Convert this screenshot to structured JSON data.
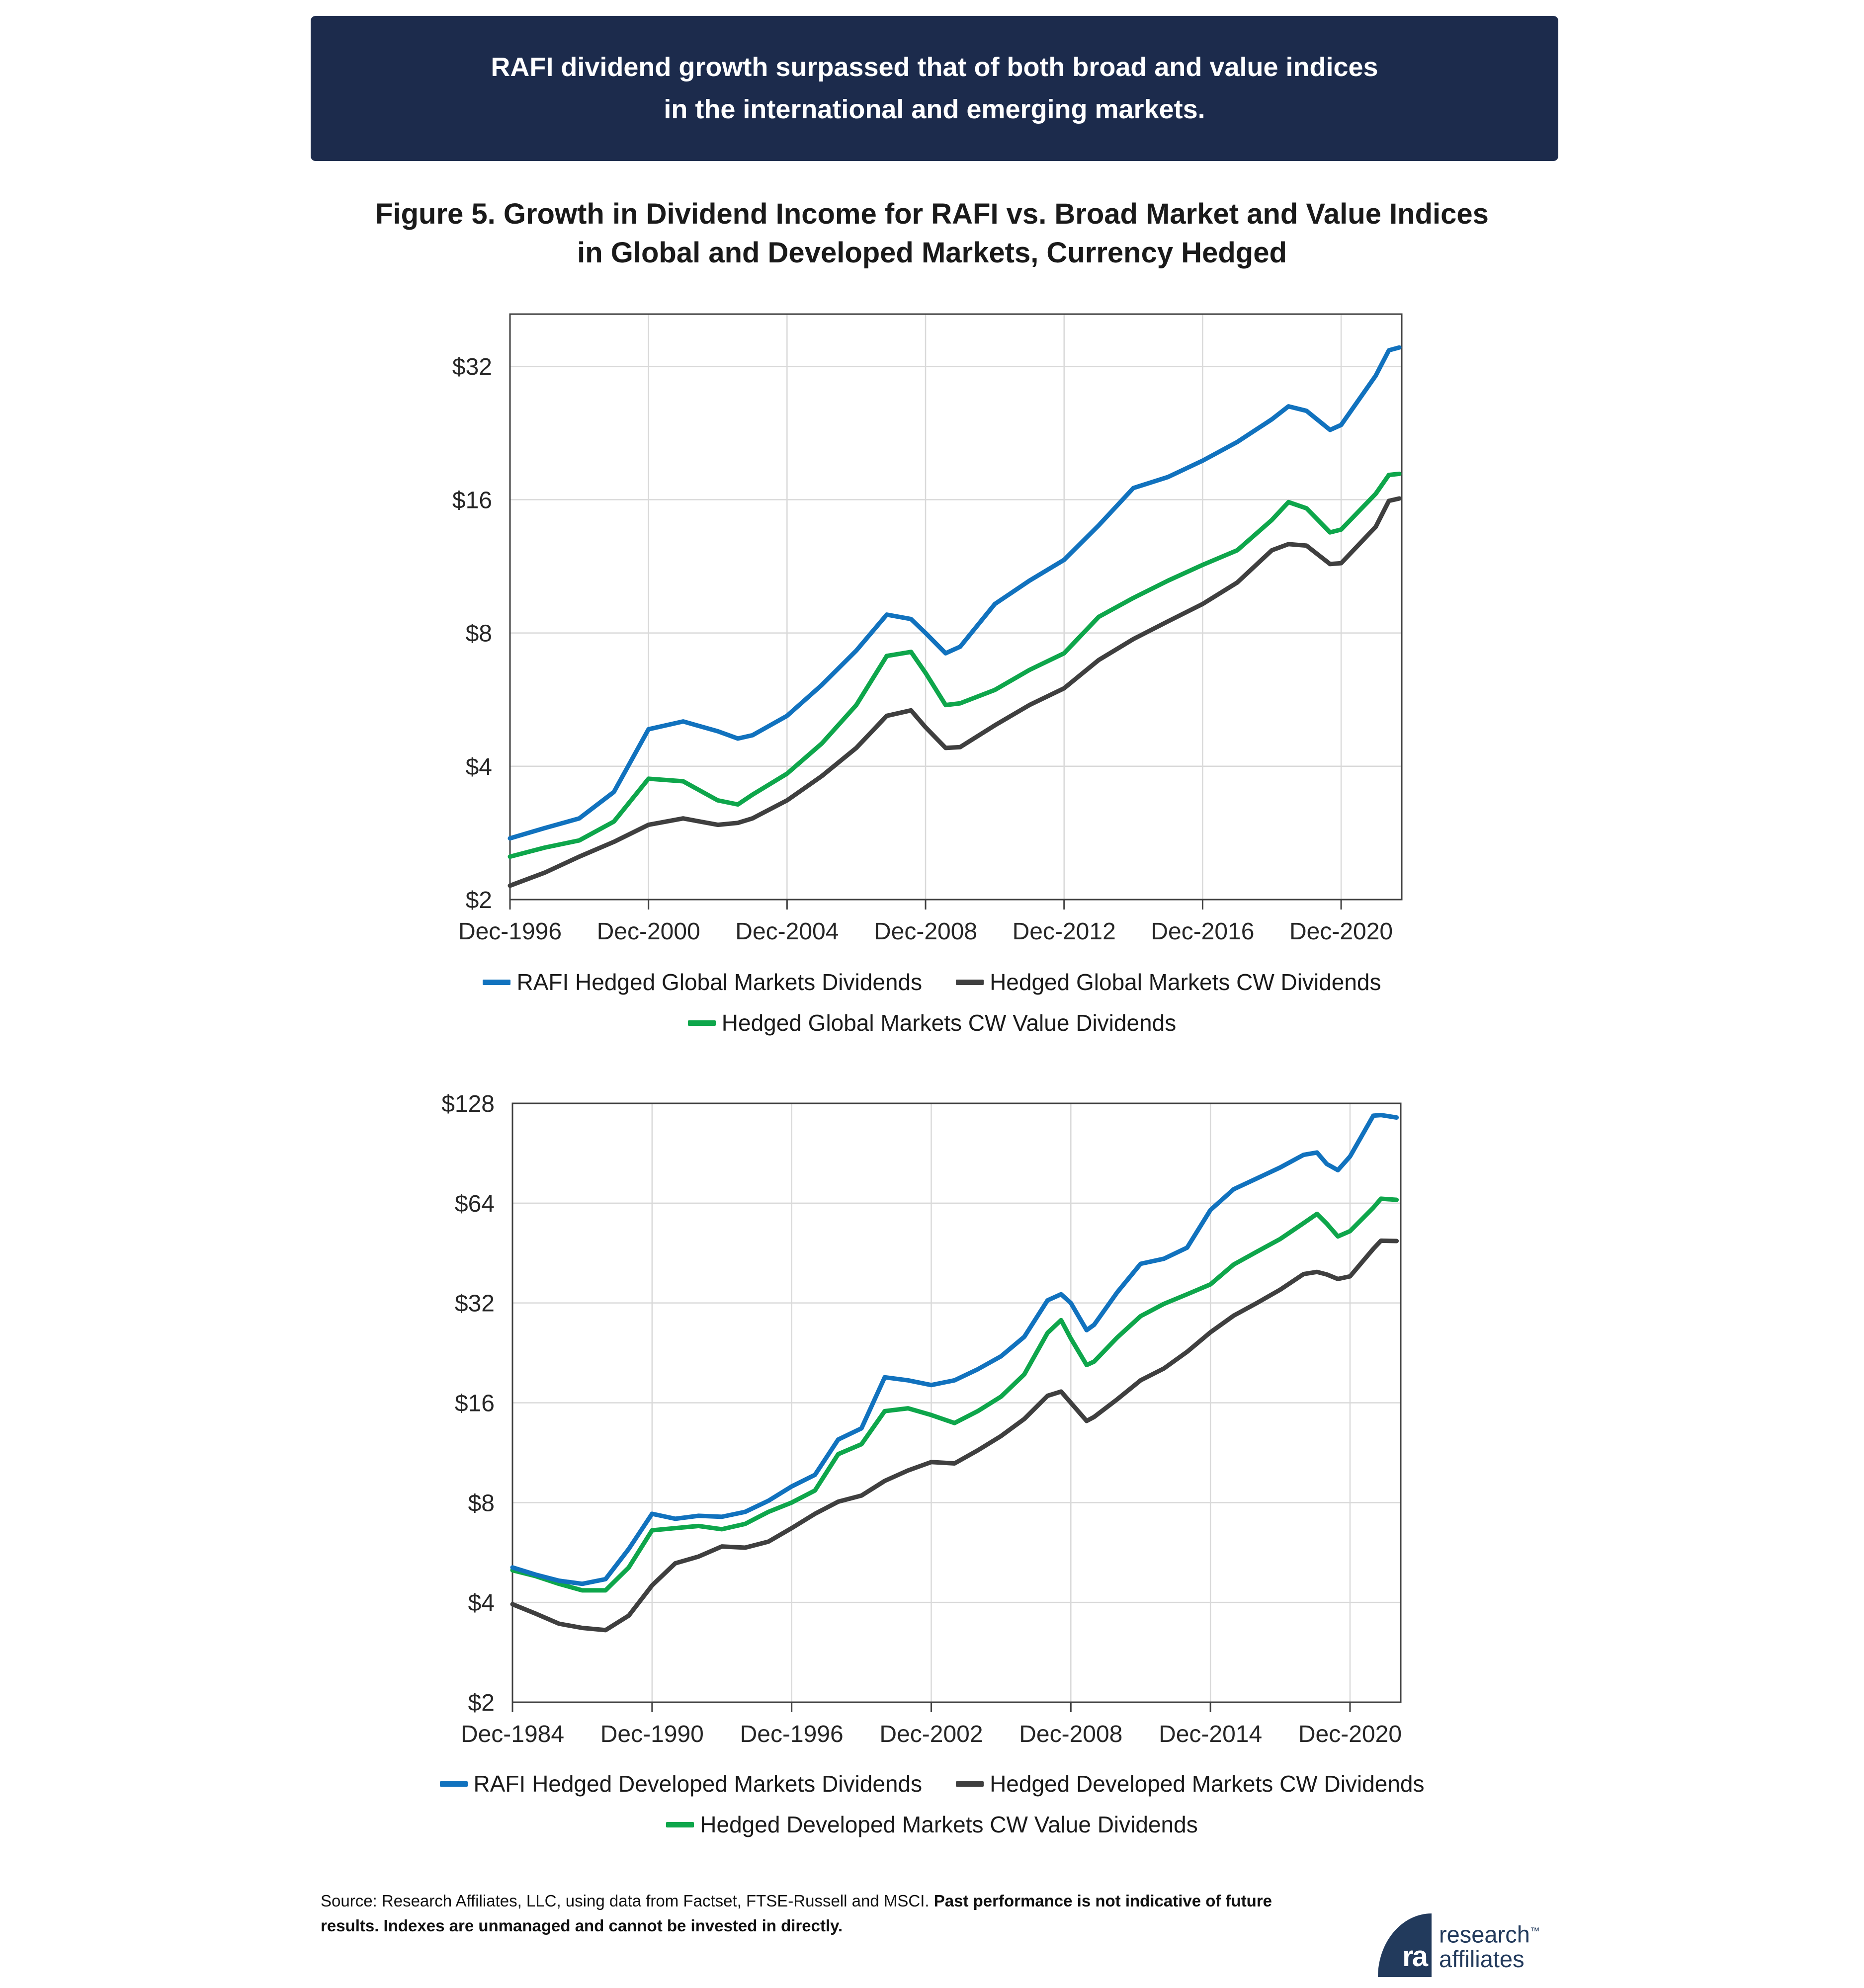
{
  "banner": {
    "line1": "RAFI dividend growth surpassed that of both broad and value indices",
    "line2": "in the international and emerging markets.",
    "bg_color": "#1C2B4C",
    "text_color": "#FFFFFF"
  },
  "figure_title": {
    "line1": "Figure 5. Growth in Dividend Income for RAFI vs. Broad Market and Value Indices",
    "line2": "in Global and Developed Markets, Currency Hedged"
  },
  "colors": {
    "rafi_blue": "#1172BE",
    "cw_gray": "#3F3F3F",
    "cw_value_green": "#0EA64B",
    "grid": "#D9D9D9",
    "axis": "#404040",
    "text": "#262626"
  },
  "chart_data": [
    {
      "id": "global-markets",
      "type": "line",
      "y_scale": "log2",
      "grid": true,
      "y_range": [
        2,
        42
      ],
      "y_tick_values": [
        2,
        4,
        8,
        16,
        32
      ],
      "y_tick_labels": [
        "$2",
        "$4",
        "$8",
        "$16",
        "$32"
      ],
      "x_range": [
        1996.92,
        2022.67
      ],
      "x_tick_values": [
        1996.92,
        2000.92,
        2004.92,
        2008.92,
        2012.92,
        2016.92,
        2020.92
      ],
      "x_tick_labels": [
        "Dec-1996",
        "Dec-2000",
        "Dec-2004",
        "Dec-2008",
        "Dec-2012",
        "Dec-2016",
        "Dec-2020"
      ],
      "series": [
        {
          "name": "Hedged Global Markets CW Dividends",
          "color": "#3F3F3F",
          "x": [
            1996.92,
            1997.92,
            1998.92,
            1999.92,
            2000.92,
            2001.92,
            2002.92,
            2003.5,
            2003.92,
            2004.92,
            2005.92,
            2006.92,
            2007.8,
            2008.5,
            2008.92,
            2009.5,
            2009.92,
            2010.92,
            2011.92,
            2012.92,
            2013.92,
            2014.92,
            2015.92,
            2016.92,
            2017.92,
            2018.92,
            2019.4,
            2019.92,
            2020.6,
            2020.92,
            2021.92,
            2022.3,
            2022.6
          ],
          "values": [
            2.15,
            2.3,
            2.5,
            2.7,
            2.95,
            3.05,
            2.95,
            2.98,
            3.05,
            3.35,
            3.8,
            4.4,
            5.2,
            5.35,
            4.9,
            4.4,
            4.42,
            4.95,
            5.5,
            6.0,
            6.95,
            7.75,
            8.5,
            9.3,
            10.4,
            12.3,
            12.7,
            12.6,
            11.45,
            11.5,
            13.9,
            15.9,
            16.1
          ]
        },
        {
          "name": "Hedged Global Markets CW Value Dividends",
          "color": "#0EA64B",
          "x": [
            1996.92,
            1997.92,
            1998.92,
            1999.92,
            2000.92,
            2001.92,
            2002.92,
            2003.5,
            2003.92,
            2004.92,
            2005.92,
            2006.92,
            2007.8,
            2008.5,
            2008.92,
            2009.5,
            2009.92,
            2010.92,
            2011.92,
            2012.92,
            2013.92,
            2014.92,
            2015.92,
            2016.92,
            2017.92,
            2018.92,
            2019.4,
            2019.92,
            2020.6,
            2020.92,
            2021.92,
            2022.3,
            2022.6
          ],
          "values": [
            2.5,
            2.62,
            2.72,
            3.0,
            3.75,
            3.7,
            3.35,
            3.28,
            3.45,
            3.85,
            4.5,
            5.5,
            7.1,
            7.25,
            6.5,
            5.5,
            5.55,
            5.95,
            6.6,
            7.2,
            8.7,
            9.6,
            10.5,
            11.4,
            12.3,
            14.4,
            15.8,
            15.3,
            13.5,
            13.7,
            16.5,
            18.2,
            18.3
          ]
        },
        {
          "name": "RAFI Hedged Global Markets Dividends",
          "color": "#1172BE",
          "x": [
            1996.92,
            1997.92,
            1998.92,
            1999.92,
            2000.92,
            2001.92,
            2002.92,
            2003.5,
            2003.92,
            2004.92,
            2005.92,
            2006.92,
            2007.8,
            2008.5,
            2008.92,
            2009.5,
            2009.92,
            2010.92,
            2011.92,
            2012.92,
            2013.92,
            2014.92,
            2015.92,
            2016.92,
            2017.92,
            2018.92,
            2019.4,
            2019.92,
            2020.6,
            2020.92,
            2021.92,
            2022.3,
            2022.6
          ],
          "values": [
            2.75,
            2.9,
            3.05,
            3.5,
            4.85,
            5.05,
            4.8,
            4.62,
            4.7,
            5.2,
            6.1,
            7.3,
            8.8,
            8.6,
            8.0,
            7.2,
            7.45,
            9.3,
            10.5,
            11.7,
            14.0,
            17.0,
            18.0,
            19.6,
            21.6,
            24.3,
            26.0,
            25.4,
            23.0,
            23.6,
            30.5,
            34.8,
            35.3
          ]
        }
      ],
      "legend_rows": [
        [
          "RAFI Hedged Global Markets Dividends",
          "Hedged Global Markets CW Dividends"
        ],
        [
          "Hedged Global Markets CW Value Dividends"
        ]
      ]
    },
    {
      "id": "developed-markets",
      "type": "line",
      "y_scale": "log2",
      "grid": true,
      "y_range": [
        2,
        128
      ],
      "y_tick_values": [
        2,
        4,
        8,
        16,
        32,
        64,
        128
      ],
      "y_tick_labels": [
        "$2",
        "$4",
        "$8",
        "$16",
        "$32",
        "$64",
        "$128"
      ],
      "x_range": [
        1984.92,
        2023.1
      ],
      "x_tick_values": [
        1984.92,
        1990.92,
        1996.92,
        2002.92,
        2008.92,
        2014.92,
        2020.92
      ],
      "x_tick_labels": [
        "Dec-1984",
        "Dec-1990",
        "Dec-1996",
        "Dec-2002",
        "Dec-2008",
        "Dec-2014",
        "Dec-2020"
      ],
      "series": [
        {
          "name": "Hedged Developed Markets CW Dividends",
          "color": "#3F3F3F",
          "x": [
            1984.92,
            1985.92,
            1986.92,
            1987.92,
            1988.92,
            1989.92,
            1990.92,
            1991.92,
            1992.92,
            1993.92,
            1994.92,
            1995.92,
            1996.92,
            1997.92,
            1998.92,
            1999.92,
            2000.92,
            2001.92,
            2002.92,
            2003.92,
            2004.92,
            2005.92,
            2006.92,
            2007.92,
            2008.5,
            2008.92,
            2009.6,
            2009.92,
            2010.92,
            2011.92,
            2012.92,
            2013.92,
            2014.92,
            2015.92,
            2016.92,
            2017.92,
            2018.92,
            2019.5,
            2019.92,
            2020.4,
            2020.92,
            2021.92,
            2022.25,
            2022.92
          ],
          "values": [
            3.95,
            3.7,
            3.45,
            3.35,
            3.3,
            3.65,
            4.5,
            5.25,
            5.5,
            5.9,
            5.85,
            6.1,
            6.7,
            7.4,
            8.05,
            8.4,
            9.3,
            10.0,
            10.6,
            10.5,
            11.5,
            12.7,
            14.3,
            16.8,
            17.3,
            16.0,
            14.1,
            14.5,
            16.4,
            18.7,
            20.3,
            22.8,
            26.1,
            29.3,
            32.0,
            35.1,
            39.1,
            39.7,
            39.0,
            37.8,
            38.5,
            46.6,
            49.3,
            49.2
          ]
        },
        {
          "name": "Hedged Developed Markets CW Value Dividends",
          "color": "#0EA64B",
          "x": [
            1984.92,
            1985.92,
            1986.92,
            1987.92,
            1988.92,
            1989.92,
            1990.92,
            1991.92,
            1992.92,
            1993.92,
            1994.92,
            1995.92,
            1996.92,
            1997.92,
            1998.92,
            1999.92,
            2000.92,
            2001.92,
            2002.92,
            2003.92,
            2004.92,
            2005.92,
            2006.92,
            2007.92,
            2008.5,
            2008.92,
            2009.6,
            2009.92,
            2010.92,
            2011.92,
            2012.92,
            2013.92,
            2014.92,
            2015.92,
            2016.92,
            2017.92,
            2018.92,
            2019.5,
            2019.92,
            2020.4,
            2020.92,
            2021.92,
            2022.25,
            2022.92
          ],
          "values": [
            5.0,
            4.8,
            4.55,
            4.35,
            4.35,
            5.1,
            6.6,
            6.7,
            6.8,
            6.65,
            6.9,
            7.5,
            8.0,
            8.7,
            11.2,
            12.0,
            15.1,
            15.4,
            14.7,
            13.9,
            15.1,
            16.7,
            19.5,
            26.0,
            28.4,
            25.0,
            20.8,
            21.3,
            25.2,
            29.2,
            31.8,
            34.0,
            36.4,
            41.8,
            45.7,
            49.9,
            55.7,
            59.4,
            55.5,
            50.8,
            52.7,
            62.0,
            66.0,
            65.5
          ]
        },
        {
          "name": "RAFI Hedged Developed Markets Dividends",
          "color": "#1172BE",
          "x": [
            1984.92,
            1985.92,
            1986.92,
            1987.92,
            1988.92,
            1989.92,
            1990.92,
            1991.92,
            1992.92,
            1993.92,
            1994.92,
            1995.92,
            1996.92,
            1997.92,
            1998.92,
            1999.92,
            2000.92,
            2001.92,
            2002.92,
            2003.92,
            2004.92,
            2005.92,
            2006.92,
            2007.92,
            2008.5,
            2008.92,
            2009.6,
            2009.92,
            2010.92,
            2011.92,
            2012.92,
            2013.92,
            2014.92,
            2015.92,
            2016.92,
            2017.92,
            2018.92,
            2019.5,
            2019.92,
            2020.4,
            2020.92,
            2021.92,
            2022.25,
            2022.92
          ],
          "values": [
            5.1,
            4.85,
            4.65,
            4.55,
            4.7,
            5.8,
            7.4,
            7.15,
            7.3,
            7.25,
            7.5,
            8.1,
            8.95,
            9.7,
            12.4,
            13.4,
            19.1,
            18.7,
            18.1,
            18.7,
            20.2,
            22.1,
            25.3,
            32.6,
            34.0,
            32.0,
            26.5,
            27.5,
            34.5,
            42.0,
            43.5,
            47.0,
            61.0,
            70.5,
            76.0,
            82.0,
            89.5,
            91.0,
            84.0,
            80.5,
            88.5,
            117.5,
            118.0,
            116.0
          ]
        }
      ],
      "legend_rows": [
        [
          "RAFI Hedged Developed Markets Dividends",
          "Hedged Developed Markets CW Dividends"
        ],
        [
          "Hedged Developed Markets CW Value Dividends"
        ]
      ]
    }
  ],
  "layout_note": "",
  "source_note": {
    "normal": "Source: Research Affiliates, LLC, using data from Factset, FTSE-Russell and MSCI. ",
    "bold": "Past performance is not indicative of future results. Indexes are unmanaged and cannot be invested in directly."
  },
  "logo": {
    "line1": "research",
    "line2": "affiliates",
    "tm": "™",
    "monogram": "ra",
    "color": "#223A5C"
  }
}
